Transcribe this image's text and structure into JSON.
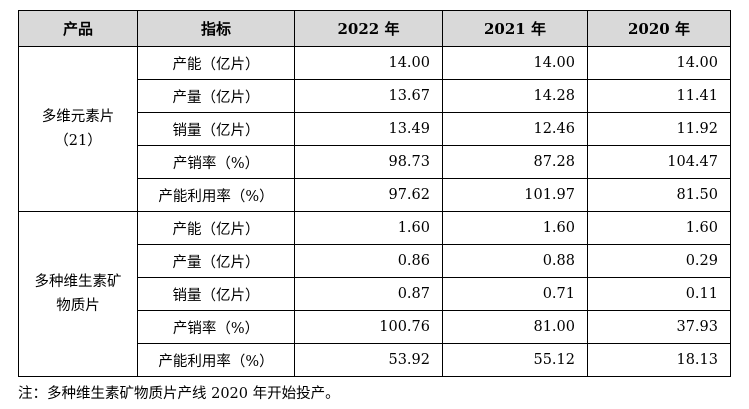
{
  "table": {
    "headers": [
      "产品",
      "指标",
      "2022 年",
      "2021 年",
      "2020 年"
    ],
    "groups": [
      {
        "product_line1": "多维元素片",
        "product_line2": "（21）",
        "rows": [
          {
            "indicator": "产能（亿片）",
            "v2022": "14.00",
            "v2021": "14.00",
            "v2020": "14.00"
          },
          {
            "indicator": "产量（亿片）",
            "v2022": "13.67",
            "v2021": "14.28",
            "v2020": "11.41"
          },
          {
            "indicator": "销量（亿片）",
            "v2022": "13.49",
            "v2021": "12.46",
            "v2020": "11.92"
          },
          {
            "indicator": "产销率（%）",
            "v2022": "98.73",
            "v2021": "87.28",
            "v2020": "104.47"
          },
          {
            "indicator": "产能利用率（%）",
            "v2022": "97.62",
            "v2021": "101.97",
            "v2020": "81.50"
          }
        ]
      },
      {
        "product_line1": "多种维生素矿",
        "product_line2": "物质片",
        "rows": [
          {
            "indicator": "产能（亿片）",
            "v2022": "1.60",
            "v2021": "1.60",
            "v2020": "1.60"
          },
          {
            "indicator": "产量（亿片）",
            "v2022": "0.86",
            "v2021": "0.88",
            "v2020": "0.29"
          },
          {
            "indicator": "销量（亿片）",
            "v2022": "0.87",
            "v2021": "0.71",
            "v2020": "0.11"
          },
          {
            "indicator": "产销率（%）",
            "v2022": "100.76",
            "v2021": "81.00",
            "v2020": "37.93"
          },
          {
            "indicator": "产能利用率（%）",
            "v2022": "53.92",
            "v2021": "55.12",
            "v2020": "18.13"
          }
        ]
      }
    ]
  },
  "note": "注：多种维生素矿物质片产线 2020 年开始投产。"
}
